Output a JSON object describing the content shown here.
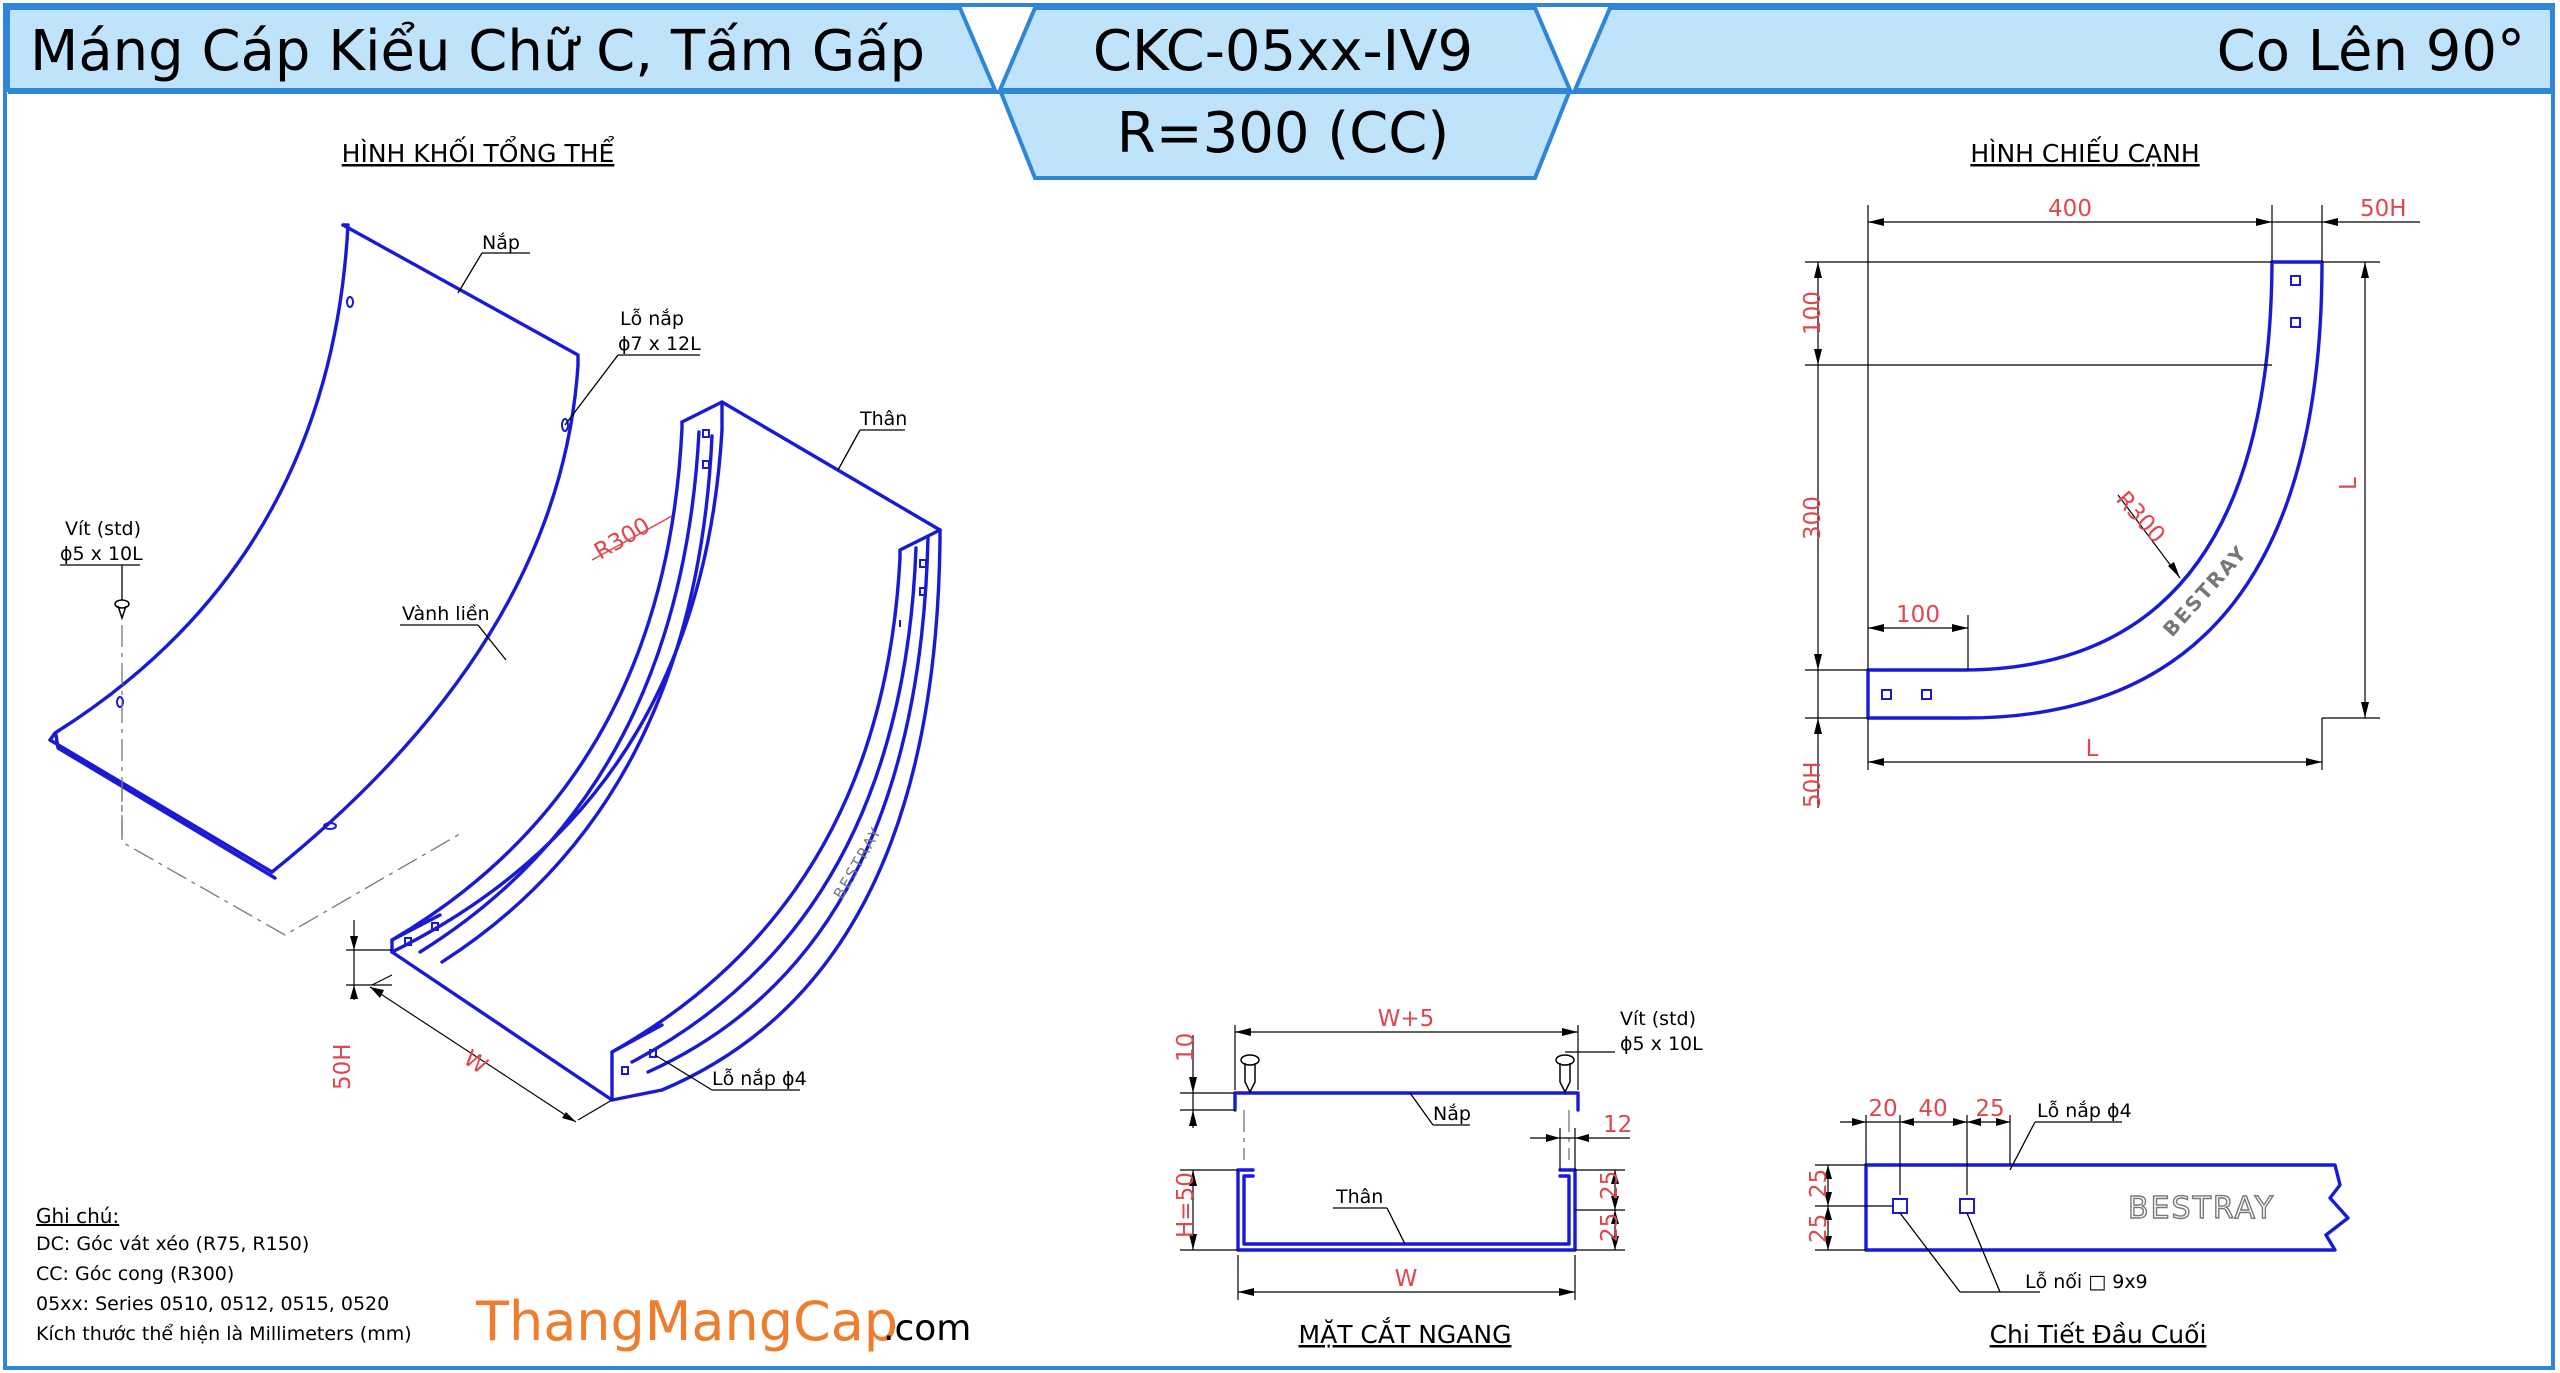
{
  "header": {
    "left_title": "Máng Cáp Kiểu Chữ C, Tấm Gấp",
    "center_code": "CKC-05xx-IV9",
    "center_radius": "R=300 (CC)",
    "right_title": "Co Lên 90°"
  },
  "iso_view": {
    "title": "HÌNH KHỐI TỔNG THỂ",
    "label_cover": "Nắp",
    "label_cover_hole": "Lỗ nắp",
    "label_cover_hole_size": "ϕ7 x 12L",
    "label_body": "Thân",
    "label_screw": "Vít (std)",
    "label_screw_size": "ϕ5 x 10L",
    "label_rim": "Vành liền",
    "label_radius": "R300",
    "label_width": "W",
    "label_height": "50H",
    "label_body_hole": "Lỗ nắp ϕ4",
    "brand_mark": "BESTRAY"
  },
  "side_view": {
    "title": "HÌNH CHIẾU CẠNH",
    "dim_400": "400",
    "dim_50h_top": "50H",
    "dim_100_vertical": "100",
    "dim_300_vertical": "300",
    "dim_100_horizontal": "100",
    "dim_radius": "R300",
    "dim_L_right": "L",
    "dim_L_bottom": "L",
    "dim_50h_bottom": "50H",
    "brand_mark": "BESTRAY"
  },
  "section_view": {
    "title": "MẶT CẮT NGANG",
    "dim_w5": "W+5",
    "dim_10": "10",
    "dim_12": "12",
    "dim_h50": "H=50",
    "dim_25_top": "25",
    "dim_25_bottom": "25",
    "dim_w": "W",
    "label_screw": "Vít (std)",
    "label_screw_size": "ϕ5 x 10L",
    "label_cover": "Nắp",
    "label_body": "Thân"
  },
  "end_detail": {
    "title": "Chi Tiết Đầu Cuối",
    "dim_20": "20",
    "dim_40": "40",
    "dim_25": "25",
    "dim_25_upper": "25",
    "dim_25_lower": "25",
    "label_hole": "Lỗ nắp ϕ4",
    "label_joint_hole": "Lỗ nối □ 9x9",
    "brand_mark": "BESTRAY"
  },
  "notes": {
    "heading": "Ghi chú:",
    "line1": "DC: Góc vát xéo (R75, R150)",
    "line2": "CC: Góc cong (R300)",
    "line3": "05xx: Series 0510, 0512, 0515, 0520",
    "line4": "Kích thước thể hiện là Millimeters (mm)"
  },
  "brand": {
    "name": "ThangMangCap",
    "suffix": ".com",
    "color": "#ee7d2d"
  },
  "colors": {
    "header_fill": "#bfe3fa",
    "header_stroke": "#2f86d6",
    "drawing_blue": "#1a1ad6",
    "dimension_red": "#e0474c"
  }
}
